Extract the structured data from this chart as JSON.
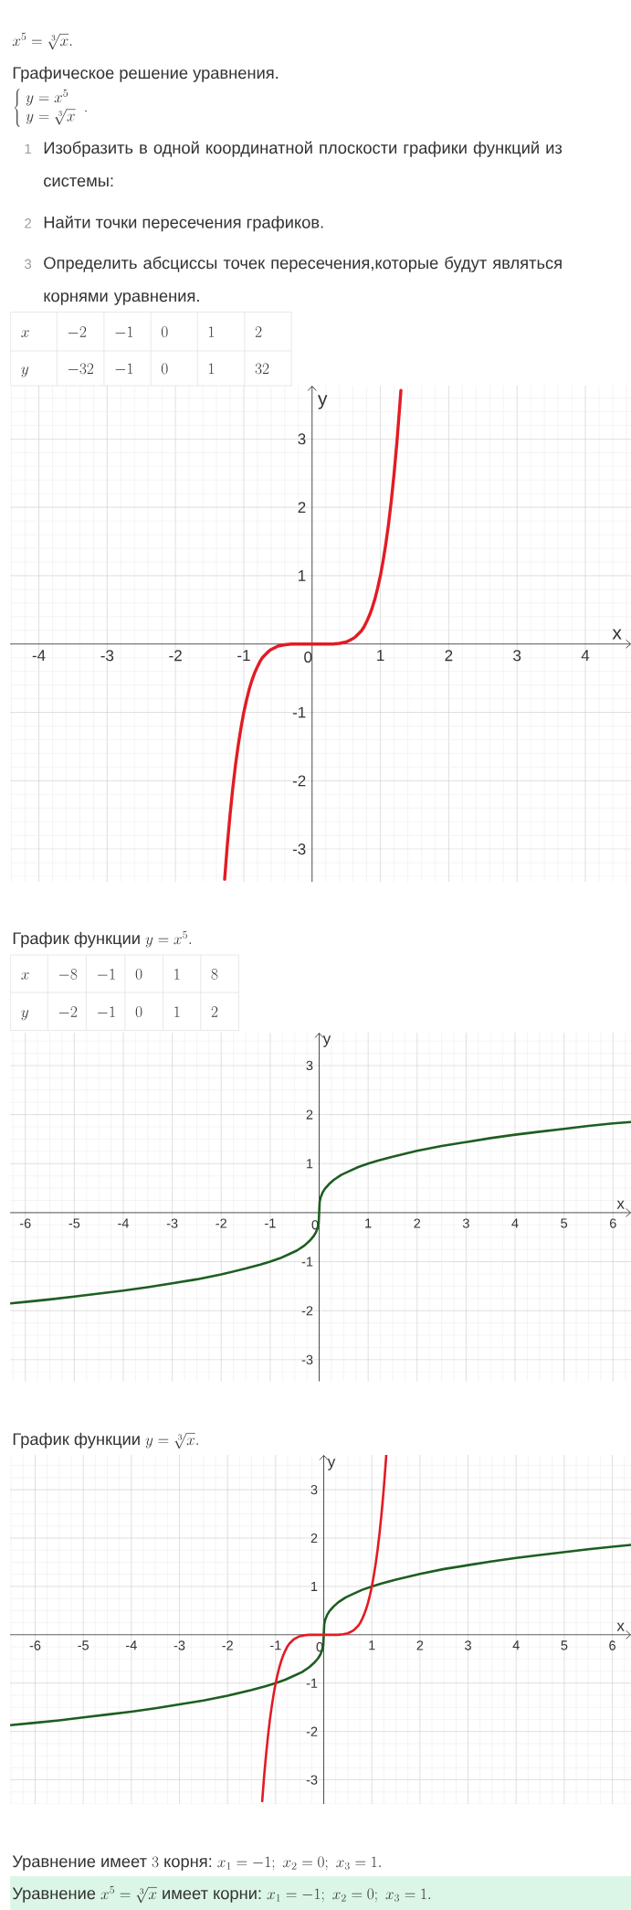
{
  "chart_data": [
    {
      "type": "line",
      "xlabel": "x",
      "ylabel": "y",
      "annotations": [
        "x^5 = \\sqrt[3]{x}.",
        "Графическое решение уравнения.",
        "\\left\\{\\begin{array}{l} y = x^5 \\\\ y = \\sqrt[3]{x} \\end{array}\\right. .",
        "1",
        "Изобразить в одной координатной плоскости графики функций из системы:",
        "2",
        "Найти точки пересечения графиков.",
        "3",
        "Определить абсциссы точек пересечения,которые будут являться корнями уравнения.",
        "x",
        "-2",
        "-1",
        "0",
        "1",
        "2",
        "y",
        "-32",
        "-1",
        "0",
        "1",
        "32",
        "График функции",
        "y = x^5."
      ],
      "xlim": [
        -4.42,
        4.67
      ],
      "ylim": [
        -3.48,
        3.78
      ],
      "xticks": [
        -4,
        -3,
        -2,
        -1,
        0,
        1,
        2,
        3,
        4
      ],
      "yticks": [
        -3,
        -2,
        -1,
        1,
        2,
        3
      ],
      "grid": true,
      "series": [
        {
          "color": "#e31b23",
          "x": [
            -1.28,
            -1.24,
            -1.2,
            -1.16,
            -1.12,
            -1.08,
            -1.04,
            -1,
            -0.96,
            -0.92,
            -0.88,
            -0.84,
            -0.8,
            -0.76,
            -0.72,
            -0.68,
            -0.64,
            -0.6,
            -0.5,
            -0.4,
            -0.3,
            -0.2,
            -0.1,
            0,
            0.1,
            0.2,
            0.3,
            0.4,
            0.5,
            0.6,
            0.64,
            0.68,
            0.72,
            0.76,
            0.8,
            0.84,
            0.88,
            0.92,
            0.96,
            1,
            1.04,
            1.08,
            1.12,
            1.16,
            1.2,
            1.24,
            1.28,
            1.3
          ],
          "values": [
            -3.44,
            -2.93,
            -2.49,
            -2.1,
            -1.76,
            -1.47,
            -1.22,
            -1,
            -0.82,
            -0.66,
            -0.53,
            -0.42,
            -0.33,
            -0.25,
            -0.19,
            -0.15,
            -0.11,
            -0.08,
            -0.03,
            -0.01,
            0,
            0,
            0,
            0,
            0,
            0,
            0,
            0.01,
            0.03,
            0.08,
            0.11,
            0.15,
            0.19,
            0.25,
            0.33,
            0.42,
            0.53,
            0.66,
            0.82,
            1,
            1.22,
            1.47,
            1.76,
            2.1,
            2.49,
            2.93,
            3.44,
            3.71
          ]
        }
      ]
    },
    {
      "type": "line",
      "xlabel": "x",
      "ylabel": "y",
      "annotations": [
        "x",
        "-8",
        "-1",
        "0",
        "1",
        "8",
        "y",
        "-2",
        "-1",
        "0",
        "1",
        "2",
        "График функции",
        "y = \\sqrt[3]{x}."
      ],
      "xlim": [
        -6.31,
        6.37
      ],
      "ylim": [
        -3.44,
        3.67
      ],
      "xticks": [
        -6,
        -5,
        -4,
        -3,
        -2,
        -1,
        0,
        1,
        2,
        3,
        4,
        5,
        6
      ],
      "yticks": [
        -3,
        -2,
        -1,
        1,
        2,
        3
      ],
      "grid": true,
      "series": [
        {
          "color": "#1d5e20",
          "x": [
            -6.31,
            -6,
            -5.5,
            -5,
            -4.5,
            -4,
            -3.5,
            -3,
            -2.5,
            -2,
            -1.5,
            -1.2,
            -1,
            -0.8,
            -0.6,
            -0.45,
            -0.3,
            -0.2,
            -0.12,
            -0.07,
            -0.03,
            -0.01,
            0,
            0.01,
            0.03,
            0.07,
            0.12,
            0.2,
            0.3,
            0.45,
            0.6,
            0.8,
            1,
            1.2,
            1.5,
            2,
            2.5,
            3,
            3.5,
            4,
            4.5,
            5,
            5.5,
            6,
            6.37
          ],
          "values": [
            -1.85,
            -1.82,
            -1.77,
            -1.71,
            -1.65,
            -1.59,
            -1.52,
            -1.44,
            -1.36,
            -1.26,
            -1.14,
            -1.06,
            -1,
            -0.93,
            -0.84,
            -0.77,
            -0.67,
            -0.58,
            -0.49,
            -0.41,
            -0.31,
            -0.22,
            0,
            0.22,
            0.31,
            0.41,
            0.49,
            0.58,
            0.67,
            0.77,
            0.84,
            0.93,
            1,
            1.06,
            1.14,
            1.26,
            1.36,
            1.44,
            1.52,
            1.59,
            1.65,
            1.71,
            1.77,
            1.82,
            1.85
          ]
        }
      ]
    },
    {
      "type": "line",
      "xlabel": "x",
      "ylabel": "y",
      "annotations": [
        "Уравнение имеет",
        "3",
        "корня:",
        "x_1 = -1;\\ x_2 = 0;\\ x_3 = 1.",
        "Уравнение",
        "x^5 = \\sqrt[3]{x}",
        "имеет корни:",
        "x_1 = -1;\\ x_2 = 0;\\ x_3 = 1."
      ],
      "xlim": [
        -6.52,
        6.39
      ],
      "ylim": [
        -3.5,
        3.72
      ],
      "xticks": [
        -6,
        -5,
        -4,
        -3,
        -2,
        -1,
        0,
        1,
        2,
        3,
        4,
        5,
        6
      ],
      "yticks": [
        -3,
        -2,
        -1,
        1,
        2,
        3
      ],
      "grid": true,
      "series": [
        {
          "color": "#1d5e20",
          "x": [
            -6.52,
            -6,
            -5.5,
            -5,
            -4.5,
            -4,
            -3.5,
            -3,
            -2.5,
            -2,
            -1.5,
            -1.2,
            -1,
            -0.8,
            -0.6,
            -0.45,
            -0.3,
            -0.2,
            -0.12,
            -0.07,
            -0.03,
            -0.01,
            0,
            0.01,
            0.03,
            0.07,
            0.12,
            0.2,
            0.3,
            0.45,
            0.6,
            0.8,
            1,
            1.2,
            1.5,
            2,
            2.5,
            3,
            3.5,
            4,
            4.5,
            5,
            5.5,
            6,
            6.39
          ],
          "values": [
            -1.87,
            -1.82,
            -1.77,
            -1.71,
            -1.65,
            -1.59,
            -1.52,
            -1.44,
            -1.36,
            -1.26,
            -1.14,
            -1.06,
            -1,
            -0.93,
            -0.84,
            -0.77,
            -0.67,
            -0.58,
            -0.49,
            -0.41,
            -0.31,
            -0.22,
            0,
            0.22,
            0.31,
            0.41,
            0.49,
            0.58,
            0.67,
            0.77,
            0.84,
            0.93,
            1,
            1.06,
            1.14,
            1.26,
            1.36,
            1.44,
            1.52,
            1.59,
            1.65,
            1.71,
            1.77,
            1.82,
            1.86
          ]
        },
        {
          "color": "#e31b23",
          "x": [
            -1.28,
            -1.24,
            -1.2,
            -1.16,
            -1.12,
            -1.08,
            -1.04,
            -1,
            -0.96,
            -0.92,
            -0.88,
            -0.84,
            -0.8,
            -0.76,
            -0.72,
            -0.68,
            -0.64,
            -0.6,
            -0.5,
            -0.4,
            -0.3,
            -0.2,
            -0.1,
            0,
            0.1,
            0.2,
            0.3,
            0.4,
            0.5,
            0.6,
            0.64,
            0.68,
            0.72,
            0.76,
            0.8,
            0.84,
            0.88,
            0.92,
            0.96,
            1,
            1.04,
            1.08,
            1.12,
            1.16,
            1.2,
            1.24,
            1.28,
            1.3
          ],
          "values": [
            -3.44,
            -2.93,
            -2.49,
            -2.1,
            -1.76,
            -1.47,
            -1.22,
            -1,
            -0.82,
            -0.66,
            -0.53,
            -0.42,
            -0.33,
            -0.25,
            -0.19,
            -0.15,
            -0.11,
            -0.08,
            -0.03,
            -0.01,
            0,
            0,
            0,
            0,
            0,
            0,
            0,
            0.01,
            0.03,
            0.08,
            0.11,
            0.15,
            0.19,
            0.25,
            0.33,
            0.42,
            0.53,
            0.66,
            0.82,
            1,
            1.22,
            1.47,
            1.76,
            2.1,
            2.49,
            2.93,
            3.44,
            3.71
          ]
        }
      ]
    }
  ]
}
